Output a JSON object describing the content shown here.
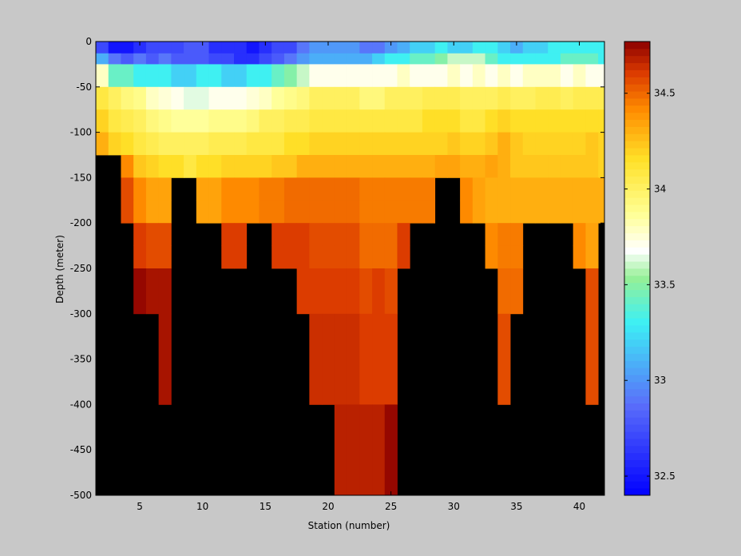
{
  "chart_data": {
    "type": "heatmap",
    "xlabel": "Station (number)",
    "ylabel": "Depth (meter)",
    "xlim": [
      1.5,
      42
    ],
    "ylim": [
      -500,
      0
    ],
    "xticks": [
      5,
      10,
      15,
      20,
      25,
      30,
      35,
      40
    ],
    "yticks": [
      0,
      -50,
      -100,
      -150,
      -200,
      -250,
      -300,
      -350,
      -400,
      -450,
      -500
    ],
    "background_color": "#000000",
    "colorbar": {
      "lim": [
        32.4,
        34.77
      ],
      "ticks": [
        32.5,
        33,
        33.5,
        34,
        34.5
      ],
      "colormap": "jet-like",
      "steps": 64
    },
    "stations": [
      2,
      3,
      4,
      5,
      6,
      7,
      8,
      9,
      10,
      11,
      12,
      13,
      14,
      15,
      16,
      17,
      18,
      19,
      20,
      21,
      22,
      23,
      24,
      25,
      26,
      27,
      28,
      29,
      30,
      31,
      32,
      33,
      34,
      35,
      36,
      37,
      38,
      39,
      40,
      41,
      42
    ],
    "depth_bins": [
      {
        "top": 0,
        "bottom": -13,
        "values": [
          32.7,
          32.5,
          32.5,
          32.6,
          32.7,
          32.7,
          32.7,
          32.8,
          32.8,
          32.6,
          32.6,
          32.6,
          32.5,
          32.6,
          32.7,
          32.7,
          32.9,
          33.0,
          33.0,
          33.0,
          33.0,
          32.9,
          32.9,
          33.0,
          33.1,
          33.2,
          33.2,
          33.3,
          33.2,
          33.2,
          33.3,
          33.3,
          33.2,
          33.1,
          33.2,
          33.2,
          33.3,
          33.3,
          33.3,
          33.3,
          33.3
        ]
      },
      {
        "top": -13,
        "bottom": -25,
        "values": [
          33.1,
          32.9,
          32.8,
          32.9,
          32.8,
          32.9,
          32.8,
          32.8,
          32.8,
          32.7,
          32.7,
          32.6,
          32.6,
          32.7,
          32.8,
          32.9,
          33.0,
          33.1,
          33.1,
          33.1,
          33.1,
          33.1,
          33.2,
          33.3,
          33.3,
          33.4,
          33.4,
          33.5,
          33.6,
          33.6,
          33.6,
          33.4,
          33.3,
          33.3,
          33.3,
          33.3,
          33.3,
          33.4,
          33.4,
          33.4,
          33.3
        ]
      },
      {
        "top": -25,
        "bottom": -50,
        "values": [
          33.8,
          33.4,
          33.4,
          33.3,
          33.3,
          33.3,
          33.2,
          33.2,
          33.3,
          33.3,
          33.2,
          33.2,
          33.3,
          33.3,
          33.4,
          33.5,
          33.6,
          33.7,
          33.7,
          33.7,
          33.7,
          33.7,
          33.7,
          33.7,
          33.8,
          33.7,
          33.7,
          33.7,
          33.8,
          33.7,
          33.8,
          33.7,
          33.8,
          33.7,
          33.8,
          33.8,
          33.8,
          33.7,
          33.8,
          33.7,
          33.7
        ]
      },
      {
        "top": -50,
        "bottom": -75,
        "values": [
          34.1,
          34.0,
          33.95,
          33.9,
          33.8,
          33.75,
          33.7,
          33.65,
          33.65,
          33.7,
          33.7,
          33.7,
          33.75,
          33.8,
          33.85,
          33.9,
          33.95,
          34.0,
          34.0,
          34.0,
          34.0,
          33.95,
          33.95,
          34.0,
          34.0,
          34.0,
          34.05,
          34.05,
          34.05,
          34.0,
          34.0,
          34.0,
          34.05,
          34.0,
          34.0,
          34.05,
          34.05,
          34.0,
          34.05,
          34.05,
          34.05
        ]
      },
      {
        "top": -75,
        "bottom": -100,
        "values": [
          34.2,
          34.1,
          34.05,
          34.0,
          33.95,
          33.9,
          33.85,
          33.85,
          33.85,
          33.9,
          33.9,
          33.9,
          33.95,
          34.0,
          34.0,
          34.05,
          34.05,
          34.1,
          34.1,
          34.1,
          34.1,
          34.1,
          34.1,
          34.1,
          34.1,
          34.1,
          34.15,
          34.15,
          34.15,
          34.1,
          34.1,
          34.15,
          34.2,
          34.15,
          34.15,
          34.15,
          34.15,
          34.15,
          34.15,
          34.15,
          34.15
        ]
      },
      {
        "top": -100,
        "bottom": -125,
        "values": [
          34.3,
          34.2,
          34.15,
          34.1,
          34.05,
          34.0,
          34.0,
          34.0,
          34.0,
          34.05,
          34.05,
          34.05,
          34.1,
          34.1,
          34.1,
          34.15,
          34.15,
          34.2,
          34.2,
          34.2,
          34.2,
          34.2,
          34.2,
          34.2,
          34.2,
          34.2,
          34.2,
          34.2,
          34.25,
          34.2,
          34.2,
          34.25,
          34.3,
          34.25,
          34.2,
          34.2,
          34.2,
          34.2,
          34.2,
          34.25,
          34.2
        ]
      },
      {
        "top": -125,
        "bottom": -150,
        "values": [
          null,
          null,
          34.4,
          34.25,
          34.2,
          34.15,
          34.15,
          34.1,
          34.15,
          34.15,
          34.2,
          34.2,
          34.2,
          34.2,
          34.25,
          34.25,
          34.3,
          34.3,
          34.3,
          34.3,
          34.3,
          34.3,
          34.3,
          34.3,
          34.3,
          34.3,
          34.3,
          34.35,
          34.35,
          34.3,
          34.3,
          34.35,
          34.3,
          34.25,
          34.25,
          34.25,
          34.25,
          34.25,
          34.25,
          34.25,
          34.2
        ]
      },
      {
        "top": -150,
        "bottom": -175,
        "values": [
          null,
          null,
          34.55,
          34.4,
          34.35,
          34.35,
          null,
          null,
          34.35,
          34.35,
          34.4,
          34.4,
          34.4,
          34.45,
          34.45,
          34.5,
          34.5,
          34.5,
          34.5,
          34.5,
          34.5,
          34.45,
          34.45,
          34.45,
          34.45,
          34.45,
          34.45,
          null,
          null,
          34.4,
          34.35,
          34.3,
          34.3,
          34.3,
          34.3,
          34.3,
          34.3,
          34.3,
          34.3,
          34.3,
          34.3
        ]
      },
      {
        "top": -175,
        "bottom": -200,
        "values": [
          null,
          null,
          34.55,
          34.4,
          34.35,
          34.35,
          null,
          null,
          34.35,
          34.35,
          34.4,
          34.4,
          34.4,
          34.45,
          34.45,
          34.5,
          34.5,
          34.5,
          34.5,
          34.5,
          34.5,
          34.45,
          34.45,
          34.45,
          34.45,
          34.45,
          34.45,
          null,
          null,
          34.4,
          34.35,
          34.3,
          34.3,
          34.3,
          34.3,
          34.3,
          34.3,
          34.3,
          34.3,
          34.3,
          34.3
        ]
      },
      {
        "top": -200,
        "bottom": -225,
        "values": [
          null,
          null,
          null,
          34.6,
          34.55,
          34.55,
          null,
          null,
          null,
          null,
          34.6,
          34.6,
          null,
          null,
          34.6,
          34.6,
          34.6,
          34.55,
          34.55,
          34.55,
          34.55,
          34.5,
          34.5,
          34.5,
          34.6,
          null,
          null,
          null,
          null,
          null,
          null,
          34.4,
          34.45,
          34.45,
          null,
          null,
          null,
          null,
          34.4,
          34.35,
          null
        ]
      },
      {
        "top": -225,
        "bottom": -250,
        "values": [
          null,
          null,
          null,
          34.6,
          34.55,
          34.55,
          null,
          null,
          null,
          null,
          34.6,
          34.6,
          null,
          null,
          34.6,
          34.6,
          34.6,
          34.55,
          34.55,
          34.55,
          34.55,
          34.5,
          34.5,
          34.5,
          34.6,
          null,
          null,
          null,
          null,
          null,
          null,
          34.4,
          34.45,
          34.45,
          null,
          null,
          null,
          null,
          34.4,
          34.35,
          null
        ]
      },
      {
        "top": -250,
        "bottom": -300,
        "values": [
          null,
          null,
          null,
          34.75,
          34.7,
          34.7,
          null,
          null,
          null,
          null,
          null,
          null,
          null,
          null,
          null,
          null,
          34.6,
          34.6,
          34.6,
          34.6,
          34.6,
          34.55,
          34.6,
          34.55,
          null,
          null,
          null,
          null,
          null,
          null,
          null,
          null,
          34.5,
          34.5,
          null,
          null,
          null,
          null,
          null,
          34.55,
          null
        ]
      },
      {
        "top": -300,
        "bottom": -400,
        "values": [
          null,
          null,
          null,
          null,
          null,
          34.7,
          null,
          null,
          null,
          null,
          null,
          null,
          null,
          null,
          null,
          null,
          null,
          34.65,
          34.65,
          34.65,
          34.65,
          34.6,
          34.6,
          34.6,
          null,
          null,
          null,
          null,
          null,
          null,
          null,
          null,
          34.55,
          null,
          null,
          null,
          null,
          null,
          null,
          34.55,
          null
        ]
      },
      {
        "top": -400,
        "bottom": -500,
        "values": [
          null,
          null,
          null,
          null,
          null,
          null,
          null,
          null,
          null,
          null,
          null,
          null,
          null,
          null,
          null,
          null,
          null,
          null,
          null,
          34.68,
          34.68,
          34.68,
          34.68,
          34.75,
          null,
          null,
          null,
          null,
          null,
          null,
          null,
          null,
          null,
          null,
          null,
          null,
          null,
          null,
          null,
          null,
          null
        ]
      }
    ]
  }
}
